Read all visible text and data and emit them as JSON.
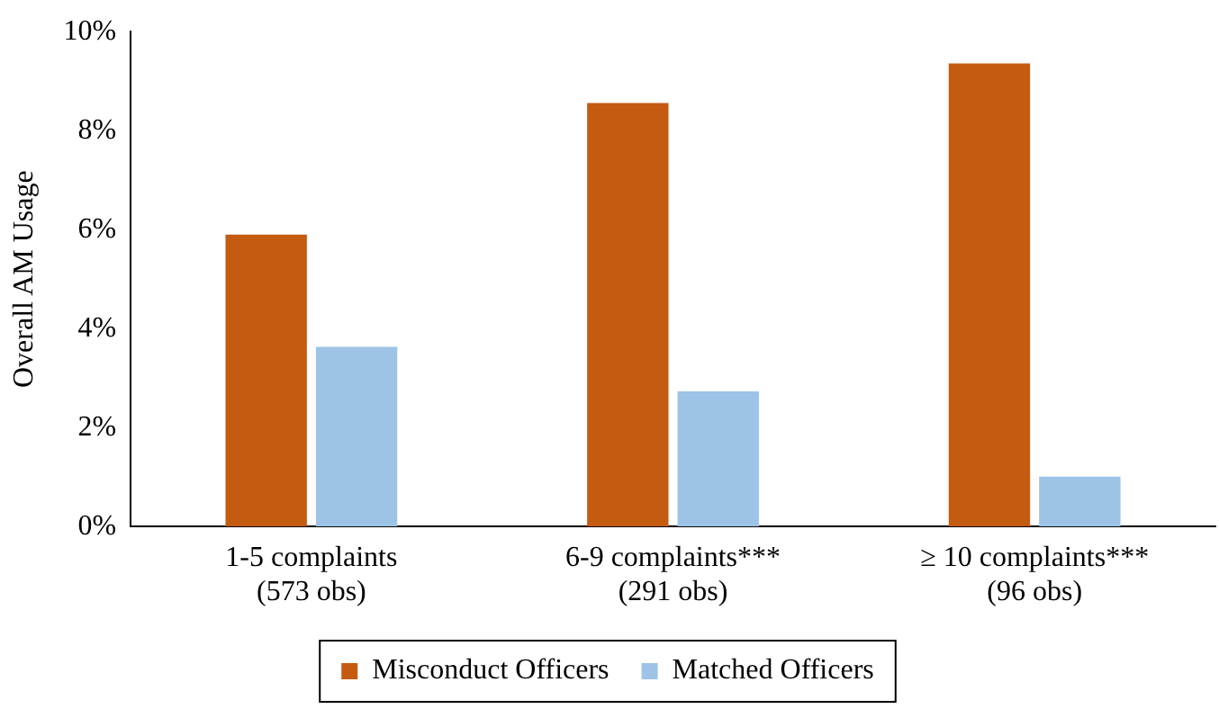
{
  "chart_data": {
    "type": "bar",
    "ylabel": "Overall AM Usage",
    "categories": [
      "1-5 complaints\n(573 obs)",
      "6-9 complaints***\n(291 obs)",
      "≥ 10 complaints***\n(96 obs)"
    ],
    "series": [
      {
        "name": "Misconduct Officers",
        "color": "#c55a11",
        "values": [
          5.9,
          8.56,
          9.36
        ]
      },
      {
        "name": "Matched Officers",
        "color": "#9dc3e6",
        "values": [
          3.63,
          2.73,
          1.01
        ]
      }
    ],
    "ylim": [
      0,
      10
    ],
    "yticks": [
      {
        "value": 0,
        "label": "0%"
      },
      {
        "value": 2,
        "label": "2%"
      },
      {
        "value": 4,
        "label": "4%"
      },
      {
        "value": 6,
        "label": "6%"
      },
      {
        "value": 8,
        "label": "8%"
      },
      {
        "value": 10,
        "label": "10%"
      }
    ],
    "grid": false,
    "legend": "bottom"
  }
}
